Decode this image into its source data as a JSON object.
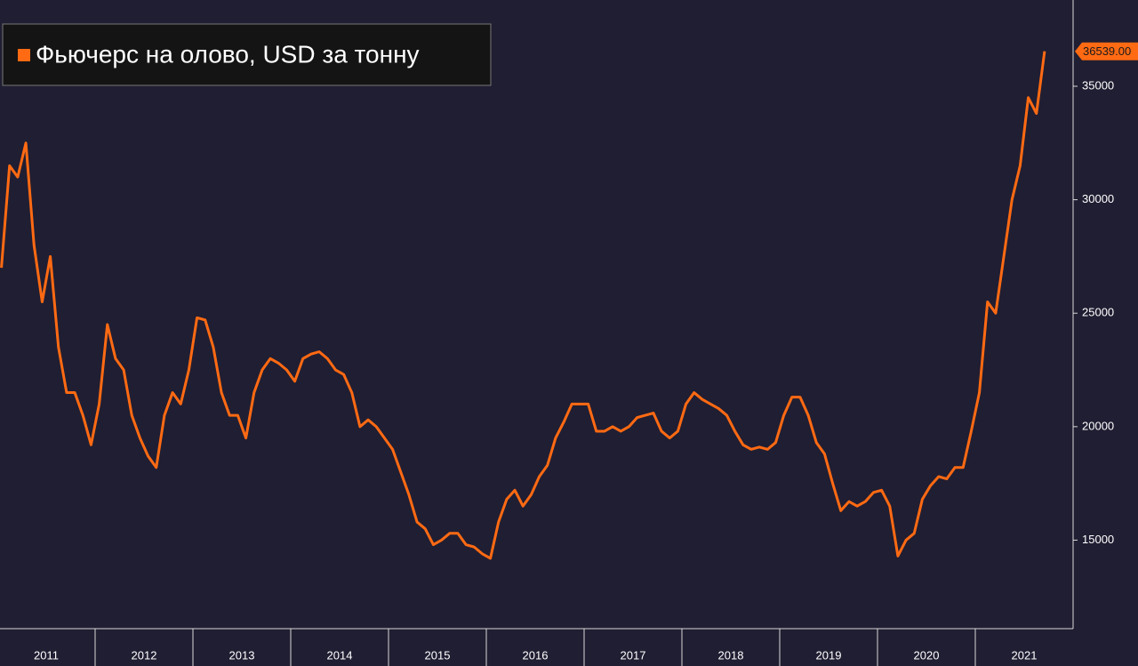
{
  "chart_data": {
    "type": "line",
    "legend_label": "Фьючерс на олово, USD за тонну",
    "years": [
      "2011",
      "2012",
      "2013",
      "2014",
      "2015",
      "2016",
      "2017",
      "2018",
      "2019",
      "2020",
      "2021"
    ],
    "series": [
      {
        "name": "Фьючерс на олово, USD за тонну",
        "color": "#ff6a13",
        "values": [
          27000,
          31500,
          31000,
          32500,
          28000,
          25500,
          27500,
          23500,
          21500,
          21500,
          20500,
          19200,
          21000,
          24500,
          23000,
          22500,
          20500,
          19500,
          18700,
          18200,
          20500,
          21500,
          21000,
          22500,
          24800,
          24700,
          23500,
          21500,
          20500,
          20500,
          19500,
          21500,
          22500,
          23000,
          22800,
          22500,
          22000,
          23000,
          23200,
          23300,
          23000,
          22500,
          22300,
          21500,
          20000,
          20300,
          20000,
          19500,
          19000,
          18000,
          17000,
          15800,
          15500,
          14800,
          15000,
          15300,
          15300,
          14800,
          14700,
          14400,
          14200,
          15800,
          16800,
          17200,
          16500,
          17000,
          17800,
          18300,
          19500,
          20200,
          21000,
          21000,
          21000,
          19800,
          19800,
          20000,
          19800,
          20000,
          20400,
          20500,
          20600,
          19800,
          19500,
          19800,
          21000,
          21500,
          21200,
          21000,
          20800,
          20500,
          19800,
          19200,
          19000,
          19100,
          19000,
          19300,
          20500,
          21300,
          21300,
          20500,
          19300,
          18800,
          17500,
          16300,
          16700,
          16500,
          16700,
          17100,
          17200,
          16500,
          14300,
          15000,
          15300,
          16800,
          17400,
          17800,
          17700,
          18200,
          18200,
          19800,
          21500,
          25500,
          25000,
          27500,
          30000,
          31500,
          34500,
          33800,
          36539
        ]
      }
    ],
    "last_price": {
      "value": 36539,
      "label": "36539.00"
    },
    "ylim": [
      11100,
      38800
    ],
    "yticks": [
      15000,
      20000,
      25000,
      30000,
      35000
    ]
  }
}
